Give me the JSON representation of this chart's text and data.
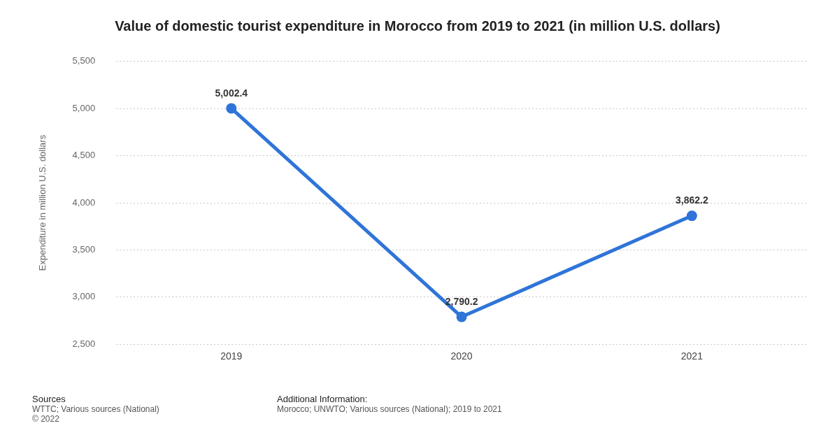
{
  "chart_data": {
    "type": "line",
    "title": "Value of domestic tourist expenditure in Morocco from 2019 to 2021 (in million U.S. dollars)",
    "ylabel": "Expenditure in million U.S. dollars",
    "categories": [
      "2019",
      "2020",
      "2021"
    ],
    "series": [
      {
        "color": "#2f74d8",
        "values": [
          5002.4,
          2790.2,
          3862.2
        ],
        "value_labels": [
          "5,002.4",
          "2,790.2",
          "3,862.2"
        ]
      }
    ],
    "ylim": [
      2500,
      5500
    ],
    "yticks": [
      {
        "value": 2500,
        "label": "2,500"
      },
      {
        "value": 3000,
        "label": "3,000"
      },
      {
        "value": 3500,
        "label": "3,500"
      },
      {
        "value": 4000,
        "label": "4,000"
      },
      {
        "value": 4500,
        "label": "4,500"
      },
      {
        "value": 5000,
        "label": "5,000"
      },
      {
        "value": 5500,
        "label": "5,500"
      }
    ],
    "grid": "y",
    "legend": false,
    "marker": "circle",
    "line_style": "solid",
    "annotations": [
      "Sources",
      "WTTC; Various sources (National)",
      "© 2022",
      "Additional Information:",
      "Morocco; UNWTO; Various sources (National); 2019 to 2021"
    ]
  }
}
